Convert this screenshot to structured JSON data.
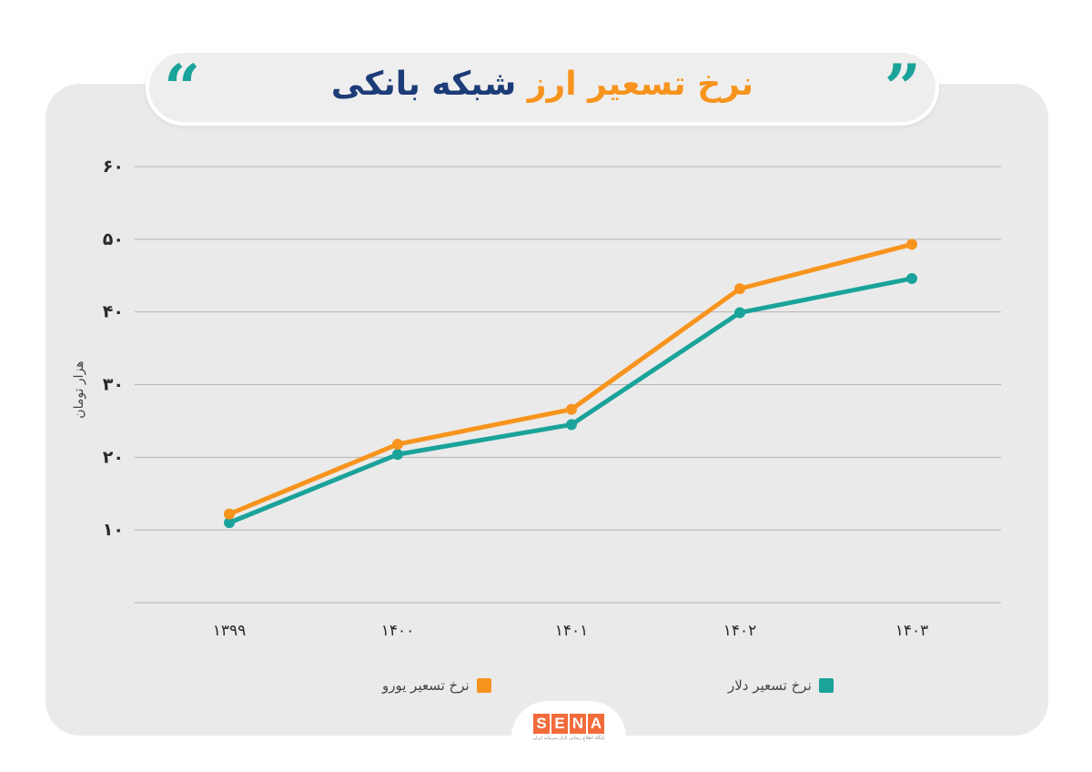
{
  "header": {
    "title_part1": "نرخ تسعیر ارز",
    "title_part2": "شبکه بانکی",
    "quote_left": "“",
    "quote_right": "”"
  },
  "colors": {
    "euro": "#f7941d",
    "dollar": "#1aa39a",
    "title_dark": "#1c3c78",
    "grid": "#b4b4b4"
  },
  "chart_data": {
    "type": "line",
    "categories": [
      "۱۳۹۹",
      "۱۴۰۰",
      "۱۴۰۱",
      "۱۴۰۲",
      "۱۴۰۳"
    ],
    "ylabel": "هزار تومان",
    "ylim": [
      0,
      60
    ],
    "yticks": [
      10,
      20,
      30,
      40,
      50,
      60
    ],
    "ytick_labels": [
      "۱۰",
      "۲۰",
      "۳۰",
      "۴۰",
      "۵۰",
      "۶۰"
    ],
    "grid": true,
    "legend_position": "bottom",
    "series": [
      {
        "name": "نرخ تسعیر یورو",
        "color": "#f7941d",
        "values": [
          12.2,
          21.8,
          26.6,
          43.2,
          49.3
        ]
      },
      {
        "name": "نرخ تسعیر دلار",
        "color": "#1aa39a",
        "values": [
          11.0,
          20.4,
          24.5,
          39.9,
          44.6
        ]
      }
    ]
  },
  "legend": {
    "euro_label": "نرخ تسعیر یورو",
    "dollar_label": "نرخ تسعیر دلار"
  },
  "brand": {
    "logo_letters": [
      "S",
      "E",
      "N",
      "A"
    ],
    "tagline": "پایگاه اطلاع رسانی بازار سرمایه ایران"
  }
}
